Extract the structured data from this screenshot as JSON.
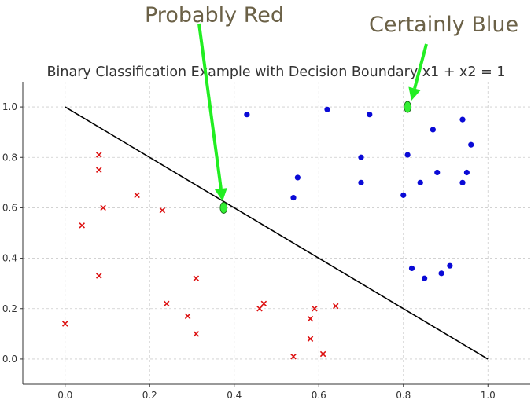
{
  "annotations": {
    "left_label": "Probably Red",
    "right_label": "Certainly Blue",
    "arrow_color": "#22ee22"
  },
  "chart_data": {
    "type": "scatter",
    "title": "Binary Classification Example with Decision Boundary x1 + x2 = 1",
    "xlabel": "",
    "ylabel": "",
    "xlim": [
      -0.1,
      1.1
    ],
    "ylim": [
      -0.1,
      1.1
    ],
    "x_ticks": [
      "0.0",
      "0.2",
      "0.4",
      "0.6",
      "0.8",
      "1.0"
    ],
    "y_ticks": [
      "0.0",
      "0.2",
      "0.4",
      "0.6",
      "0.8",
      "1.0"
    ],
    "grid": true,
    "boundary": {
      "x": [
        0,
        1
      ],
      "y": [
        1,
        0
      ],
      "color": "#000000"
    },
    "series": [
      {
        "marker": "x",
        "color": "#dd1111",
        "points": [
          [
            0.08,
            0.81
          ],
          [
            0.08,
            0.75
          ],
          [
            0.17,
            0.65
          ],
          [
            0.09,
            0.6
          ],
          [
            0.23,
            0.59
          ],
          [
            0.04,
            0.53
          ],
          [
            0.08,
            0.33
          ],
          [
            0.31,
            0.32
          ],
          [
            0.24,
            0.22
          ],
          [
            0.29,
            0.17
          ],
          [
            0.31,
            0.1
          ],
          [
            0.0,
            0.14
          ],
          [
            0.46,
            0.2
          ],
          [
            0.47,
            0.22
          ],
          [
            0.59,
            0.2
          ],
          [
            0.58,
            0.16
          ],
          [
            0.64,
            0.21
          ],
          [
            0.58,
            0.08
          ],
          [
            0.54,
            0.01
          ],
          [
            0.61,
            0.02
          ]
        ]
      },
      {
        "marker": "o",
        "color": "#0a0ad6",
        "points": [
          [
            0.43,
            0.97
          ],
          [
            0.62,
            0.99
          ],
          [
            0.72,
            0.97
          ],
          [
            0.87,
            0.91
          ],
          [
            0.94,
            0.95
          ],
          [
            0.96,
            0.85
          ],
          [
            0.81,
            0.81
          ],
          [
            0.7,
            0.8
          ],
          [
            0.55,
            0.72
          ],
          [
            0.88,
            0.74
          ],
          [
            0.95,
            0.74
          ],
          [
            0.84,
            0.7
          ],
          [
            0.7,
            0.7
          ],
          [
            0.94,
            0.7
          ],
          [
            0.8,
            0.65
          ],
          [
            0.54,
            0.64
          ],
          [
            0.82,
            0.36
          ],
          [
            0.85,
            0.32
          ],
          [
            0.89,
            0.34
          ],
          [
            0.91,
            0.37
          ]
        ]
      }
    ],
    "highlights": [
      {
        "x": 0.375,
        "y": 0.6,
        "color": "#33ee33"
      },
      {
        "x": 0.81,
        "y": 1.0,
        "color": "#33ee33"
      }
    ]
  }
}
